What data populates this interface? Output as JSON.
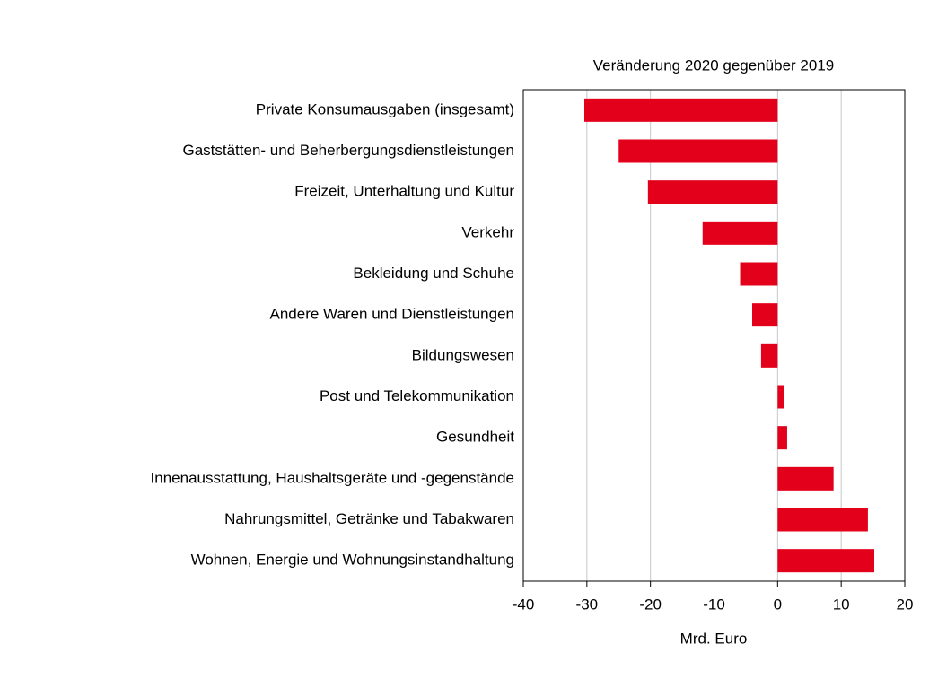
{
  "chart_data": {
    "type": "bar",
    "orientation": "horizontal",
    "title": "Veränderung 2020 gegenüber 2019",
    "x_label": "Mrd. Euro",
    "categories": [
      "Private Konsumausgaben (insgesamt)",
      "Gaststätten- und Beherbergungsdienstleistungen",
      "Freizeit, Unterhaltung und Kultur",
      "Verkehr",
      "Bekleidung und Schuhe",
      "Andere Waren und Dienstleistungen",
      "Bildungswesen",
      "Post und Telekommunikation",
      "Gesundheit",
      "Innenausstattung, Haushaltsgeräte und -gegenstände",
      "Nahrungsmittel, Getränke und Tabakwaren",
      "Wohnen, Energie und Wohnungsinstandhaltung"
    ],
    "values": [
      -30.4,
      -25.0,
      -20.4,
      -11.8,
      -5.9,
      -4.0,
      -2.6,
      1.0,
      1.5,
      8.8,
      14.2,
      15.2
    ],
    "color": "#e3001b",
    "xlim": [
      -40,
      20
    ],
    "xticks": [
      -40,
      -30,
      -20,
      -10,
      0,
      10,
      20
    ],
    "grid": true
  }
}
